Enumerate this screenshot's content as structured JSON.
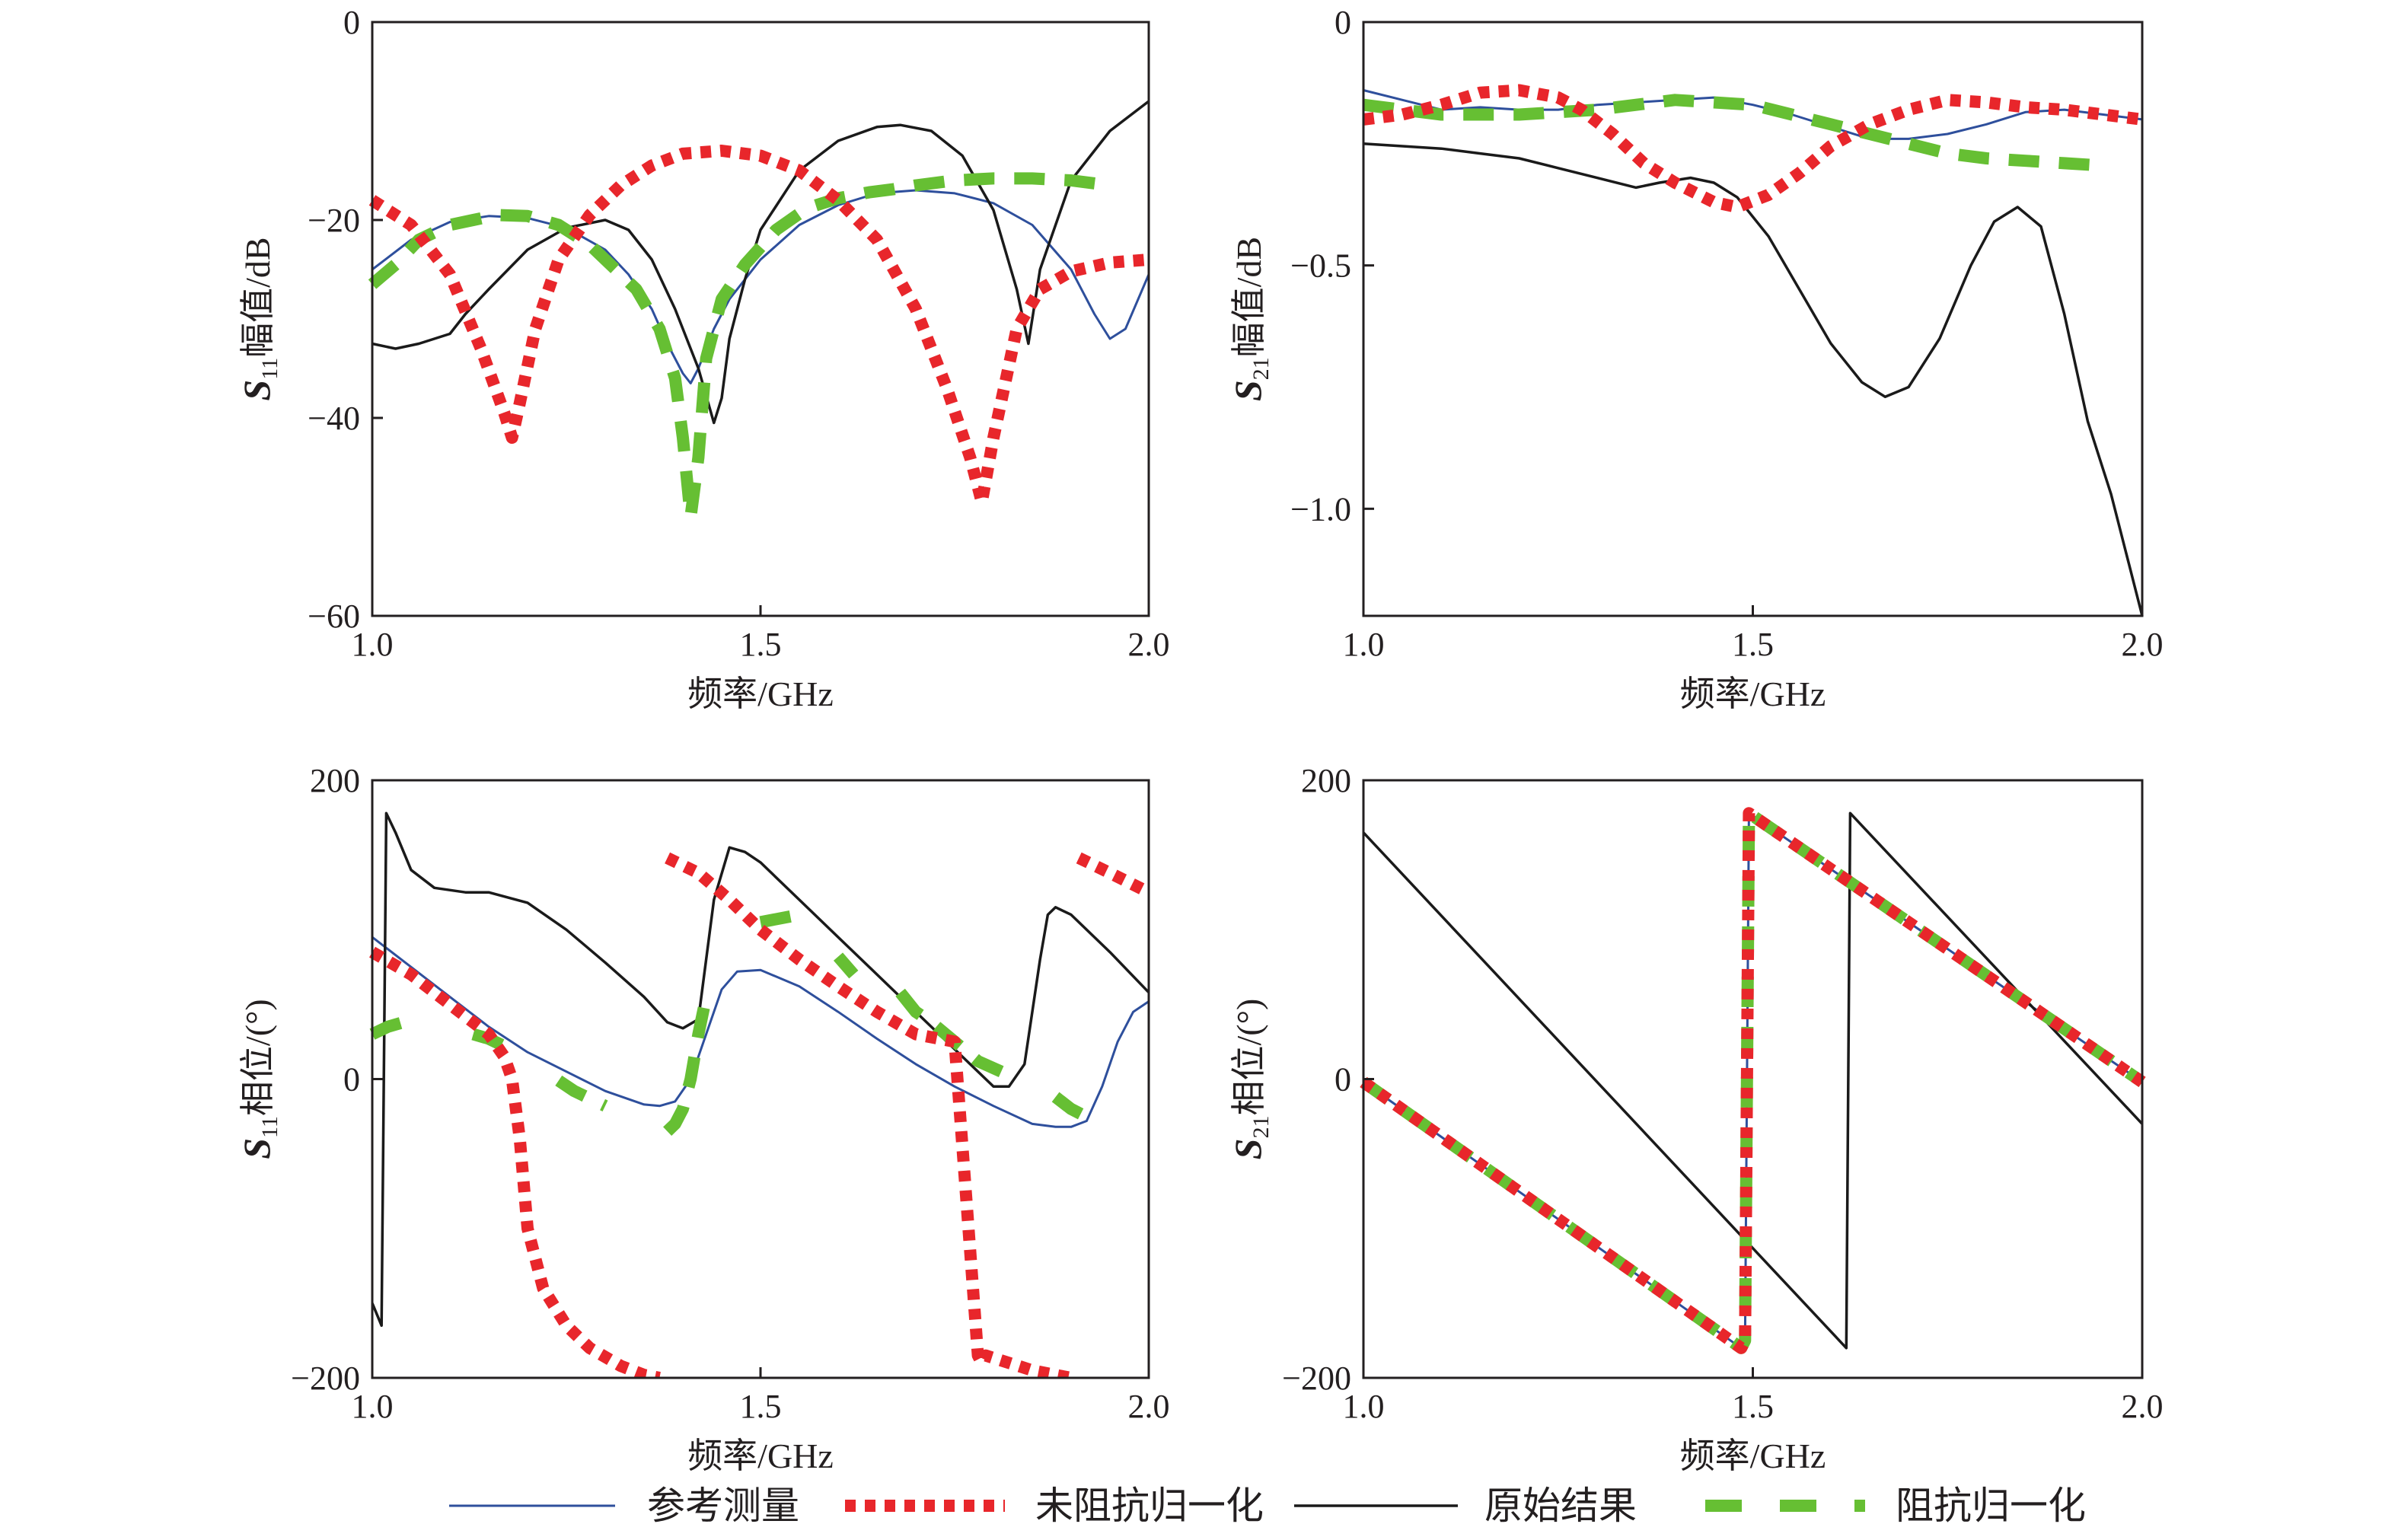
{
  "colors": {
    "reference": "#2e4f9c",
    "unnormalized": "#e8262b",
    "raw": "#1a1a1a",
    "normalized": "#66bf33"
  },
  "legend": [
    {
      "key": "reference",
      "label": "参考测量",
      "style": "solid"
    },
    {
      "key": "unnormalized",
      "label": "未阻抗归一化",
      "style": "dotted-thick"
    },
    {
      "key": "raw",
      "label": "原始结果",
      "style": "solid"
    },
    {
      "key": "normalized",
      "label": "阻抗归一化",
      "style": "dashed-thick"
    }
  ],
  "chart_data": [
    {
      "id": "s11-mag",
      "type": "line",
      "ylabel_main": "S",
      "ylabel_sub": "11",
      "ylabel_rest": "幅值/dB",
      "xlabel": "频率/GHz",
      "xlim": [
        1.0,
        2.0
      ],
      "ylim": [
        -60,
        0
      ],
      "xticks": [
        1.0,
        1.5,
        2.0
      ],
      "xtick_labels": [
        "1.0",
        "1.5",
        "2.0"
      ],
      "yticks": [
        0,
        -20,
        -40,
        -60
      ],
      "ytick_labels": [
        "0",
        "−20",
        "−40",
        "−60"
      ],
      "series": [
        {
          "key": "reference",
          "name": "参考测量",
          "x": [
            1.0,
            1.05,
            1.1,
            1.15,
            1.2,
            1.25,
            1.3,
            1.33,
            1.36,
            1.38,
            1.4,
            1.41,
            1.42,
            1.44,
            1.46,
            1.5,
            1.55,
            1.6,
            1.65,
            1.7,
            1.75,
            1.8,
            1.85,
            1.9,
            1.93,
            1.95,
            1.97,
            2.0
          ],
          "y": [
            -25,
            -22,
            -20.2,
            -19.6,
            -19.8,
            -20.8,
            -23,
            -25.5,
            -29,
            -32.5,
            -35.5,
            -36.5,
            -35,
            -31,
            -28,
            -24,
            -20.5,
            -18.5,
            -17.3,
            -17,
            -17.3,
            -18.3,
            -20.5,
            -25,
            -29.5,
            -32,
            -31,
            -25.5
          ]
        },
        {
          "key": "unnormalized",
          "name": "未阻抗归一化",
          "x": [
            1.0,
            1.05,
            1.1,
            1.14,
            1.17,
            1.18,
            1.19,
            1.21,
            1.24,
            1.28,
            1.32,
            1.36,
            1.4,
            1.45,
            1.5,
            1.55,
            1.6,
            1.65,
            1.7,
            1.74,
            1.77,
            1.785,
            1.8,
            1.83,
            1.86,
            1.9,
            1.95,
            2.0
          ],
          "y": [
            -18,
            -20.5,
            -25.5,
            -33,
            -39.5,
            -42,
            -38.5,
            -31,
            -24,
            -19.5,
            -16.5,
            -14.5,
            -13.3,
            -13,
            -13.5,
            -15,
            -18,
            -22,
            -29,
            -37,
            -44,
            -48.5,
            -42,
            -31,
            -27,
            -25.2,
            -24.3,
            -24
          ]
        },
        {
          "key": "raw",
          "name": "原始结果",
          "x": [
            1.0,
            1.03,
            1.06,
            1.1,
            1.12,
            1.15,
            1.2,
            1.25,
            1.3,
            1.33,
            1.36,
            1.39,
            1.42,
            1.44,
            1.45,
            1.46,
            1.48,
            1.5,
            1.55,
            1.6,
            1.65,
            1.68,
            1.72,
            1.76,
            1.8,
            1.83,
            1.845,
            1.86,
            1.9,
            1.95,
            2.0
          ],
          "y": [
            -32.5,
            -33,
            -32.5,
            -31.5,
            -29.5,
            -27,
            -23,
            -20.8,
            -20,
            -21,
            -24,
            -29,
            -35,
            -40.5,
            -38,
            -32,
            -26,
            -21,
            -15,
            -12,
            -10.6,
            -10.4,
            -11,
            -13.5,
            -19,
            -27,
            -32.5,
            -25,
            -16,
            -11,
            -8
          ]
        },
        {
          "key": "normalized",
          "name": "阻抗归一化",
          "x": [
            1.0,
            1.03,
            1.06,
            1.1,
            1.13,
            1.16,
            1.2,
            1.24,
            1.28,
            1.3,
            1.34,
            1.37,
            1.39,
            1.4,
            1.41,
            1.42,
            1.43,
            1.45,
            1.48,
            1.52,
            1.56,
            1.6,
            1.64,
            1.67,
            1.7,
            1.75,
            1.8,
            1.85,
            1.9,
            1.95
          ],
          "y": [
            -26.5,
            -24.5,
            -22,
            -20.5,
            -20,
            -19.5,
            -19.6,
            -20.5,
            -22.5,
            -24,
            -27,
            -31,
            -36,
            -42,
            -50,
            -44,
            -34,
            -28,
            -24.5,
            -21,
            -18.8,
            -17.8,
            -17.2,
            -16.9,
            -16.5,
            -16,
            -15.8,
            -15.8,
            -16,
            -16.5
          ]
        }
      ]
    },
    {
      "id": "s21-mag",
      "type": "line",
      "ylabel_main": "S",
      "ylabel_sub": "21",
      "ylabel_rest": "幅值/dB",
      "xlabel": "频率/GHz",
      "xlim": [
        1.0,
        2.0
      ],
      "ylim": [
        -1.22,
        0
      ],
      "xticks": [
        1.0,
        1.5,
        2.0
      ],
      "xtick_labels": [
        "1.0",
        "1.5",
        "2.0"
      ],
      "yticks": [
        0,
        -0.5,
        -1.0
      ],
      "ytick_labels": [
        "0",
        "−0.5",
        "−1.0"
      ],
      "series": [
        {
          "key": "reference",
          "name": "参考测量",
          "x": [
            1.0,
            1.05,
            1.1,
            1.15,
            1.2,
            1.25,
            1.3,
            1.35,
            1.4,
            1.45,
            1.5,
            1.55,
            1.6,
            1.65,
            1.7,
            1.75,
            1.8,
            1.85,
            1.9,
            1.95,
            2.0
          ],
          "y": [
            -0.14,
            -0.16,
            -0.18,
            -0.175,
            -0.18,
            -0.18,
            -0.17,
            -0.165,
            -0.16,
            -0.155,
            -0.17,
            -0.19,
            -0.215,
            -0.24,
            -0.24,
            -0.23,
            -0.21,
            -0.185,
            -0.18,
            -0.19,
            -0.2
          ]
        },
        {
          "key": "unnormalized",
          "name": "未阻抗归一化",
          "x": [
            1.0,
            1.05,
            1.1,
            1.15,
            1.2,
            1.25,
            1.28,
            1.32,
            1.36,
            1.4,
            1.45,
            1.48,
            1.52,
            1.56,
            1.6,
            1.65,
            1.7,
            1.75,
            1.8,
            1.85,
            1.9,
            1.95,
            2.0
          ],
          "y": [
            -0.2,
            -0.19,
            -0.17,
            -0.145,
            -0.14,
            -0.155,
            -0.18,
            -0.23,
            -0.29,
            -0.33,
            -0.37,
            -0.38,
            -0.355,
            -0.31,
            -0.255,
            -0.21,
            -0.18,
            -0.16,
            -0.165,
            -0.175,
            -0.18,
            -0.19,
            -0.2
          ]
        },
        {
          "key": "raw",
          "name": "原始结果",
          "x": [
            1.0,
            1.05,
            1.1,
            1.15,
            1.2,
            1.25,
            1.3,
            1.35,
            1.38,
            1.42,
            1.45,
            1.48,
            1.52,
            1.56,
            1.6,
            1.64,
            1.67,
            1.7,
            1.74,
            1.78,
            1.81,
            1.84,
            1.87,
            1.9,
            1.93,
            1.96,
            2.0
          ],
          "y": [
            -0.25,
            -0.255,
            -0.26,
            -0.27,
            -0.28,
            -0.3,
            -0.32,
            -0.34,
            -0.33,
            -0.32,
            -0.33,
            -0.36,
            -0.44,
            -0.55,
            -0.66,
            -0.74,
            -0.77,
            -0.75,
            -0.65,
            -0.5,
            -0.41,
            -0.38,
            -0.42,
            -0.6,
            -0.82,
            -0.97,
            -1.22
          ]
        },
        {
          "key": "normalized",
          "name": "阻抗归一化",
          "x": [
            1.0,
            1.05,
            1.1,
            1.15,
            1.2,
            1.25,
            1.3,
            1.35,
            1.4,
            1.45,
            1.5,
            1.55,
            1.6,
            1.65,
            1.7,
            1.75,
            1.8,
            1.85,
            1.9,
            1.95
          ],
          "y": [
            -0.17,
            -0.18,
            -0.19,
            -0.19,
            -0.19,
            -0.185,
            -0.18,
            -0.17,
            -0.16,
            -0.165,
            -0.17,
            -0.19,
            -0.21,
            -0.23,
            -0.25,
            -0.27,
            -0.28,
            -0.285,
            -0.29,
            -0.295
          ]
        }
      ]
    },
    {
      "id": "s11-phase",
      "type": "line",
      "ylabel_main": "S",
      "ylabel_sub": "11",
      "ylabel_rest": "相位/(°)",
      "xlabel": "频率/GHz",
      "xlim": [
        1.0,
        2.0
      ],
      "ylim": [
        -200,
        200
      ],
      "xticks": [
        1.0,
        1.5,
        2.0
      ],
      "xtick_labels": [
        "1.0",
        "1.5",
        "2.0"
      ],
      "yticks": [
        200,
        0,
        -200
      ],
      "ytick_labels": [
        "200",
        "0",
        "−200"
      ],
      "series": [
        {
          "key": "reference",
          "name": "参考测量",
          "x": [
            1.0,
            1.05,
            1.1,
            1.15,
            1.2,
            1.25,
            1.3,
            1.35,
            1.37,
            1.39,
            1.41,
            1.43,
            1.45,
            1.47,
            1.5,
            1.55,
            1.6,
            1.65,
            1.7,
            1.75,
            1.8,
            1.85,
            1.88,
            1.9,
            1.92,
            1.94,
            1.96,
            1.98,
            2.0
          ],
          "y": [
            95,
            75,
            55,
            35,
            18,
            5,
            -8,
            -17,
            -18,
            -15,
            0,
            30,
            60,
            72,
            73,
            62,
            45,
            27,
            10,
            -5,
            -18,
            -30,
            -32,
            -32,
            -28,
            -5,
            25,
            45,
            52
          ]
        },
        {
          "key": "unnormalized",
          "name": "未阻抗归一化",
          "x": [
            1.0,
            1.05,
            1.1,
            1.15,
            1.17,
            1.18,
            1.19,
            1.2,
            1.22,
            1.25,
            1.28,
            1.32,
            1.35,
            1.37,
            1.371,
            1.38,
            1.42,
            1.46,
            1.5,
            1.55,
            1.6,
            1.65,
            1.7,
            1.75,
            1.78,
            1.785,
            1.79,
            1.82,
            1.85,
            1.88,
            1.9,
            1.901,
            1.91,
            1.95,
            2.0
          ],
          "y": [
            85,
            70,
            50,
            30,
            15,
            0,
            -40,
            -100,
            -140,
            -165,
            -180,
            -192,
            -198,
            -200,
            null,
            148,
            138,
            120,
            100,
            80,
            62,
            45,
            30,
            25,
            -185,
            -190,
            -185,
            -190,
            -195,
            -198,
            -200,
            null,
            148,
            138,
            125
          ]
        },
        {
          "key": "raw",
          "name": "原始结果",
          "x": [
            1.0,
            1.012,
            1.018,
            1.03,
            1.05,
            1.08,
            1.12,
            1.15,
            1.2,
            1.25,
            1.3,
            1.35,
            1.38,
            1.4,
            1.42,
            1.44,
            1.46,
            1.48,
            1.5,
            1.55,
            1.6,
            1.65,
            1.7,
            1.75,
            1.8,
            1.82,
            1.84,
            1.86,
            1.87,
            1.88,
            1.9,
            1.95,
            2.0
          ],
          "y": [
            -150,
            -165,
            178,
            165,
            140,
            128,
            125,
            125,
            118,
            100,
            78,
            55,
            38,
            34,
            40,
            120,
            155,
            152,
            145,
            120,
            95,
            70,
            45,
            20,
            -5,
            -5,
            10,
            80,
            110,
            115,
            110,
            85,
            58
          ]
        },
        {
          "key": "normalized",
          "name": "阻抗归一化",
          "x": [
            1.0,
            1.02,
            1.04,
            1.05,
            1.13,
            1.15,
            1.17,
            1.2,
            1.24,
            1.26,
            1.28,
            1.3,
            1.37,
            1.38,
            1.39,
            1.4,
            1.41,
            1.42,
            1.43,
            1.45,
            1.5,
            1.55,
            1.58,
            1.6,
            1.62,
            1.65,
            1.68,
            1.7,
            1.72,
            1.75,
            1.78,
            1.81,
            1.83,
            1.88,
            1.9,
            1.93
          ],
          "y": [
            30,
            35,
            38,
            null,
            30,
            27,
            22,
            null,
            -1,
            -8,
            -13,
            -18,
            null,
            -35,
            -30,
            -20,
            0,
            30,
            55,
            null,
            105,
            110,
            null,
            82,
            70,
            null,
            58,
            45,
            38,
            25,
            12,
            5,
            null,
            -12,
            -20,
            -28
          ]
        }
      ]
    },
    {
      "id": "s21-phase",
      "type": "line",
      "ylabel_main": "S",
      "ylabel_sub": "21",
      "ylabel_rest": "相位/(°)",
      "xlabel": "频率/GHz",
      "xlim": [
        1.0,
        2.0
      ],
      "ylim": [
        -200,
        200
      ],
      "xticks": [
        1.0,
        1.5,
        2.0
      ],
      "xtick_labels": [
        "1.0",
        "1.5",
        "2.0"
      ],
      "yticks": [
        200,
        0,
        -200
      ],
      "ytick_labels": [
        "200",
        "0",
        "−200"
      ],
      "series": [
        {
          "key": "reference",
          "name": "参考测量",
          "x": [
            1.0,
            1.485,
            1.49,
            1.495,
            2.0
          ],
          "y": [
            -2,
            -180,
            -175,
            178,
            -2
          ]
        },
        {
          "key": "raw",
          "name": "原始结果",
          "x": [
            1.0,
            1.62,
            1.625,
            2.0
          ],
          "y": [
            165,
            -180,
            178,
            -30
          ]
        },
        {
          "key": "normalized",
          "name": "阻抗归一化",
          "x": [
            1.0,
            1.485,
            1.49,
            1.495,
            2.0
          ],
          "y": [
            -2,
            -180,
            -175,
            178,
            -2
          ]
        },
        {
          "key": "unnormalized",
          "name": "未阻抗归一化",
          "x": [
            1.0,
            1.485,
            1.49,
            1.495,
            2.0
          ],
          "y": [
            -2,
            -180,
            -175,
            178,
            -2
          ]
        }
      ]
    }
  ]
}
